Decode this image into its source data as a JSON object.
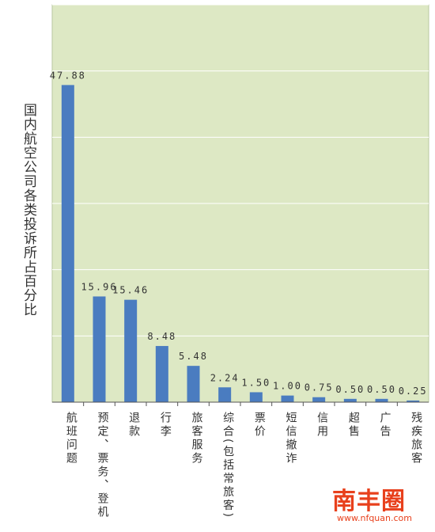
{
  "chart_data": {
    "type": "bar",
    "ylabel": "国内航空公司各类投诉所占百分比",
    "categories": [
      "航班问题",
      "预定、票务、登机",
      "退款",
      "行李",
      "旅客服务",
      "综合(包括常旅客)",
      "票价",
      "短信撤诈",
      "信用",
      "超售",
      "广告",
      "残疾旅客"
    ],
    "values": [
      47.88,
      15.96,
      15.46,
      8.48,
      5.48,
      2.24,
      1.5,
      1.0,
      0.75,
      0.5,
      0.5,
      0.25
    ],
    "value_labels": [
      "47.88",
      "15.96",
      "15.46",
      "8.48",
      "5.48",
      "2.24",
      "1.50",
      "1.00",
      "0.75",
      "0.50",
      "0.50",
      "0.25"
    ],
    "ylim": [
      0,
      60
    ],
    "grid": true,
    "colors": {
      "plot_background": "#dde8c4",
      "bar": "#4a7cc0",
      "grid": "#ffffff",
      "text": "#333333"
    }
  },
  "watermark": {
    "brand": "南丰圈",
    "url": "www.nfquan.com"
  }
}
